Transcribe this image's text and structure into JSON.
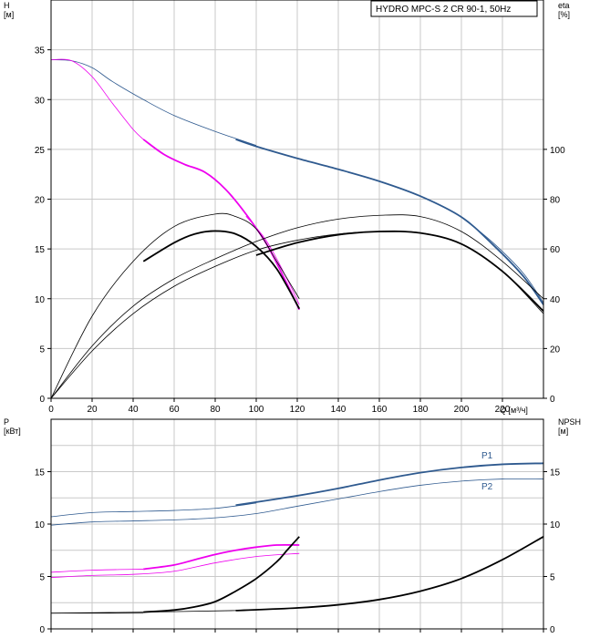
{
  "colors": {
    "blue": "#2f5a8f",
    "magenta": "#ee00ee",
    "black": "#000000",
    "grid": "#c9c9c9"
  },
  "chart_data": [
    {
      "type": "line",
      "title": "HYDRO MPC-S 2 CR 90-1, 50Hz",
      "xlabel": "Q [м³/ч]",
      "ylabel": "H\n[м]",
      "y2label": "eta\n[%]",
      "xlim": [
        0,
        240
      ],
      "ylim": [
        0,
        40
      ],
      "y2lim": [
        0,
        160
      ],
      "x_ticks": [
        "0",
        "20",
        "40",
        "60",
        "80",
        "100",
        "120",
        "140",
        "160",
        "180",
        "200",
        "220"
      ],
      "y_ticks": [
        "0",
        "5",
        "10",
        "15",
        "20",
        "25",
        "30",
        "35"
      ],
      "y2_ticks": [
        "0",
        "20",
        "40",
        "60",
        "80",
        "100"
      ],
      "grid": true,
      "series": [
        {
          "color": "#2f5a8f",
          "axis": "left",
          "style": "thin",
          "x": [
            0,
            10,
            20,
            30,
            45,
            60,
            80,
            100
          ],
          "y": [
            34,
            33.9,
            33.2,
            31.8,
            30,
            28.4,
            26.8,
            25.4
          ]
        },
        {
          "color": "#2f5a8f",
          "axis": "left",
          "style": "thick",
          "x": [
            90,
            100,
            120,
            140,
            160,
            180,
            200,
            215,
            230,
            240
          ],
          "y": [
            26,
            25.3,
            24.1,
            23,
            21.8,
            20.3,
            18.2,
            15.5,
            12.3,
            9.4
          ]
        },
        {
          "color": "#2f5a8f",
          "axis": "left",
          "style": "thin",
          "x": [
            200,
            215,
            230,
            240
          ],
          "y": [
            18.2,
            15.7,
            12.6,
            9.6
          ]
        },
        {
          "color": "#ee00ee",
          "axis": "left",
          "style": "thin",
          "x": [
            0,
            10,
            20,
            30,
            40,
            45
          ],
          "y": [
            34,
            33.9,
            32.3,
            29.6,
            27,
            26
          ]
        },
        {
          "color": "#ee00ee",
          "axis": "left",
          "style": "thick",
          "x": [
            45,
            55,
            65,
            75,
            85,
            95,
            105,
            115,
            121
          ],
          "y": [
            26,
            24.5,
            23.5,
            22.7,
            21,
            18.5,
            15.5,
            11.5,
            8.9
          ]
        },
        {
          "color": "#ee00ee",
          "axis": "left",
          "style": "thin",
          "x": [
            95,
            105,
            115,
            121
          ],
          "y": [
            18.3,
            15.8,
            12,
            9.4
          ]
        },
        {
          "color": "#000000",
          "axis": "right",
          "style": "thin",
          "x": [
            0,
            20,
            40,
            60,
            80,
            90,
            100,
            110,
            121
          ],
          "y": [
            0,
            33,
            55,
            69,
            74,
            73,
            68,
            55,
            40
          ]
        },
        {
          "color": "#000000",
          "axis": "right",
          "style": "thick",
          "x": [
            45,
            60,
            70,
            80,
            90,
            100,
            110,
            121
          ],
          "y": [
            55,
            62.5,
            66,
            67.2,
            66,
            61,
            52,
            36
          ]
        },
        {
          "color": "#000000",
          "axis": "right",
          "style": "thin",
          "x": [
            0,
            20,
            40,
            60,
            80,
            100,
            120,
            140,
            160,
            180,
            200,
            220,
            240
          ],
          "y": [
            0,
            21,
            37,
            48,
            56,
            63,
            68.5,
            72,
            73.5,
            73,
            67,
            55,
            40
          ]
        },
        {
          "color": "#000000",
          "axis": "right",
          "style": "thick",
          "x": [
            100,
            120,
            140,
            160,
            180,
            200,
            220,
            240
          ],
          "y": [
            57.5,
            62.5,
            65.7,
            67,
            66.4,
            62,
            51,
            35
          ]
        },
        {
          "color": "#000000",
          "axis": "right",
          "style": "thin",
          "x": [
            0,
            20,
            40,
            60,
            80,
            100,
            120,
            140,
            160,
            180,
            200,
            220,
            240
          ],
          "y": [
            0,
            19,
            34,
            45,
            53,
            59.5,
            63.5,
            66,
            67,
            66.5,
            62,
            51,
            34
          ]
        }
      ]
    },
    {
      "type": "line",
      "ylabel": "P\n[кВт]",
      "y2label": "NPSH\n[м]",
      "xlim": [
        0,
        240
      ],
      "ylim": [
        0,
        20
      ],
      "y2lim": [
        0,
        20
      ],
      "y_ticks": [
        "0",
        "5",
        "10",
        "15"
      ],
      "y2_ticks": [
        "0",
        "5",
        "10",
        "15"
      ],
      "grid": true,
      "series": [
        {
          "name": "P1",
          "color": "#2f5a8f",
          "axis": "left",
          "style": "thin",
          "x": [
            0,
            20,
            40,
            60,
            80,
            100
          ],
          "y": [
            10.7,
            11.1,
            11.2,
            11.3,
            11.5,
            12
          ]
        },
        {
          "name": "P1",
          "color": "#2f5a8f",
          "axis": "left",
          "style": "thick",
          "x": [
            90,
            120,
            140,
            160,
            180,
            200,
            220,
            240
          ],
          "y": [
            11.8,
            12.7,
            13.4,
            14.2,
            14.9,
            15.4,
            15.7,
            15.8
          ]
        },
        {
          "name": "P2",
          "color": "#2f5a8f",
          "axis": "left",
          "style": "thin",
          "x": [
            0,
            20,
            40,
            60,
            80,
            100,
            120,
            140,
            160,
            180,
            200,
            220,
            240
          ],
          "y": [
            9.9,
            10.2,
            10.3,
            10.4,
            10.6,
            11,
            11.7,
            12.4,
            13.1,
            13.7,
            14.1,
            14.3,
            14.3
          ]
        },
        {
          "color": "#ee00ee",
          "axis": "left",
          "style": "thin",
          "x": [
            0,
            20,
            45
          ],
          "y": [
            5.4,
            5.6,
            5.7
          ]
        },
        {
          "color": "#ee00ee",
          "axis": "left",
          "style": "thick",
          "x": [
            45,
            60,
            70,
            80,
            90,
            100,
            110,
            121
          ],
          "y": [
            5.7,
            6.1,
            6.6,
            7.1,
            7.5,
            7.8,
            8,
            8
          ]
        },
        {
          "color": "#ee00ee",
          "axis": "left",
          "style": "thin",
          "x": [
            0,
            20,
            40,
            60,
            80,
            100,
            121
          ],
          "y": [
            4.9,
            5.1,
            5.2,
            5.5,
            6.3,
            6.9,
            7.2
          ]
        },
        {
          "color": "#000000",
          "axis": "right",
          "style": "thin",
          "x": [
            0,
            30,
            45
          ],
          "y": [
            1.5,
            1.5,
            1.5
          ]
        },
        {
          "color": "#000000",
          "axis": "right",
          "style": "thick",
          "x": [
            45,
            60,
            70,
            80,
            90,
            100,
            110,
            115,
            121
          ],
          "y": [
            1.6,
            1.8,
            2.1,
            2.6,
            3.6,
            4.8,
            6.4,
            7.5,
            8.8
          ]
        },
        {
          "color": "#000000",
          "axis": "right",
          "style": "thin",
          "x": [
            0,
            45,
            90
          ],
          "y": [
            1.5,
            1.6,
            1.75
          ]
        },
        {
          "color": "#000000",
          "axis": "right",
          "style": "thick",
          "x": [
            90,
            120,
            140,
            160,
            180,
            200,
            220,
            240
          ],
          "y": [
            1.75,
            2,
            2.3,
            2.8,
            3.6,
            4.8,
            6.6,
            8.8
          ]
        }
      ]
    }
  ]
}
